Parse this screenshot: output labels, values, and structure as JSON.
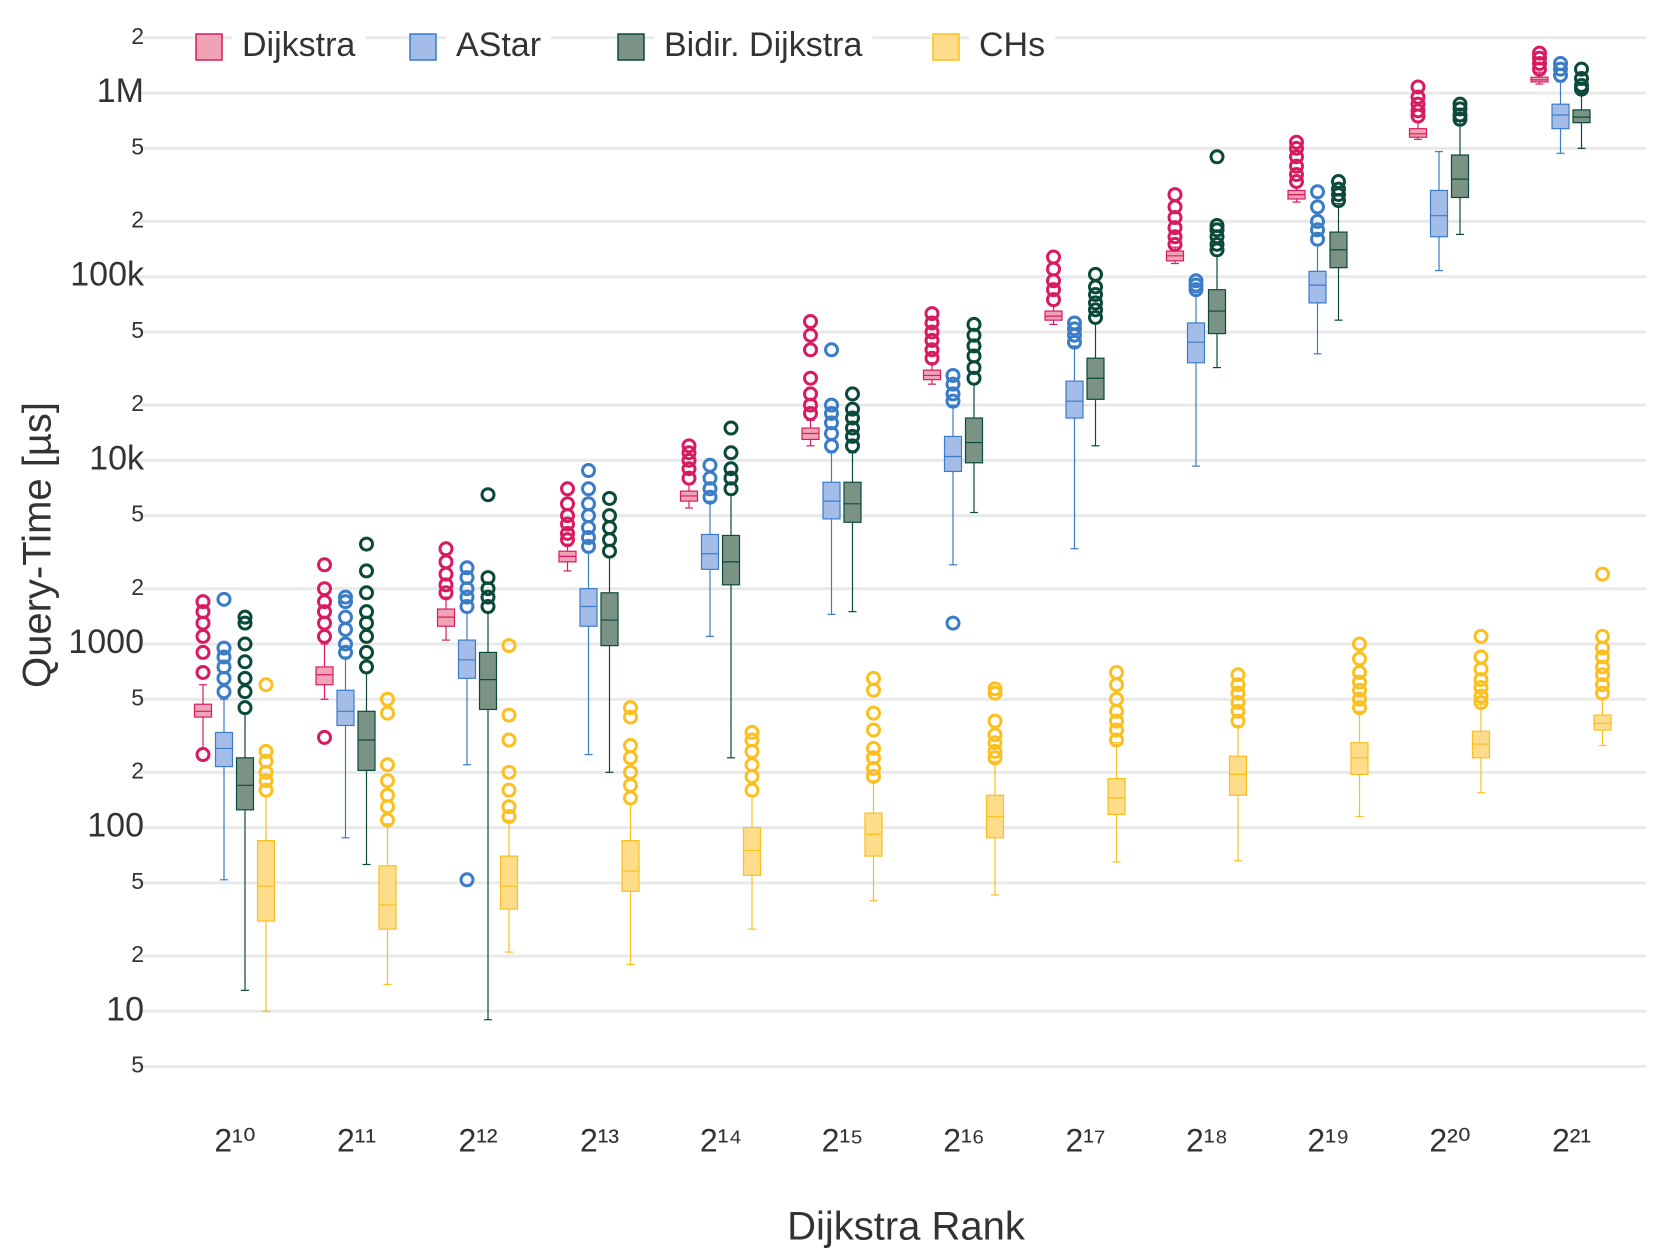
{
  "chart_data": {
    "type": "box",
    "y_label": "Query-Time [µs]",
    "x_label": "Dijkstra Rank",
    "categories": [
      "2¹⁰",
      "2¹¹",
      "2¹²",
      "2¹³",
      "2¹⁴",
      "2¹⁵",
      "2¹⁶",
      "2¹⁷",
      "2¹⁸",
      "2¹⁹",
      "2²⁰",
      "2²¹"
    ],
    "y_log": true,
    "grid": true,
    "legend": "top",
    "ylim": [
      3.5,
      2500000
    ],
    "yticks": [
      5,
      10,
      {
        "value": 20,
        "label": "2"
      },
      {
        "value": 50,
        "label": "5"
      },
      100,
      {
        "value": 200,
        "label": "2"
      },
      {
        "value": 500,
        "label": "5"
      },
      1000,
      {
        "value": 2000,
        "label": "2"
      },
      {
        "value": 5000,
        "label": "5"
      },
      {
        "value": 10000,
        "label": "10k"
      },
      {
        "value": 20000,
        "label": "2"
      },
      {
        "value": 50000,
        "label": "5"
      },
      {
        "value": 100000,
        "label": "100k"
      },
      {
        "value": 200000,
        "label": "2"
      },
      {
        "value": 500000,
        "label": "5"
      },
      {
        "value": 1000000,
        "label": "1M"
      },
      {
        "value": 2000000,
        "label": "2"
      }
    ],
    "series": [
      {
        "name": "Dijkstra",
        "color": "#d81b60",
        "box_color": "#f0a3b4",
        "whislo": [
          270,
          500,
          1050,
          2500,
          5500,
          12000,
          26000,
          55000,
          118000,
          255000,
          560000,
          1120000
        ],
        "q1": [
          400,
          600,
          1250,
          2800,
          6000,
          13000,
          27500,
          58000,
          122000,
          265000,
          575000,
          1150000
        ],
        "med": [
          430,
          680,
          1400,
          3000,
          6400,
          14000,
          29000,
          61000,
          130000,
          280000,
          600000,
          1180000
        ],
        "q3": [
          470,
          750,
          1550,
          3200,
          6800,
          15000,
          31000,
          65000,
          138000,
          295000,
          640000,
          1220000
        ],
        "whishi": [
          600,
          1000,
          1800,
          3500,
          7500,
          16500,
          34000,
          70000,
          145000,
          310000,
          700000,
          1300000
        ],
        "outliers": [
          [
            250,
            700,
            900,
            1100,
            1300,
            1500,
            1700
          ],
          [
            310,
            1100,
            1300,
            1500,
            1700,
            2000,
            2700
          ],
          [
            1900,
            2100,
            2400,
            2800,
            3300
          ],
          [
            3700,
            4000,
            4500,
            5000,
            5800,
            7000
          ],
          [
            8000,
            9000,
            10000,
            11000,
            12000
          ],
          [
            18000,
            20000,
            23000,
            28000,
            40000,
            48000,
            57000
          ],
          [
            36000,
            40000,
            45000,
            50000,
            56000,
            63000
          ],
          [
            75000,
            85000,
            95000,
            110000,
            128000
          ],
          [
            150000,
            165000,
            185000,
            210000,
            240000,
            280000
          ],
          [
            330000,
            360000,
            400000,
            450000,
            500000,
            540000
          ],
          [
            750000,
            800000,
            870000,
            950000,
            1080000
          ],
          [
            1350000,
            1450000,
            1550000,
            1650000
          ]
        ]
      },
      {
        "name": "AStar",
        "color": "#3a7cc8",
        "box_color": "#a4bde8",
        "whislo": [
          52,
          88,
          220,
          250,
          1100,
          1450,
          2700,
          3300,
          9300,
          38000,
          108000,
          470000
        ],
        "q1": [
          215,
          360,
          650,
          1250,
          2550,
          4800,
          8700,
          17000,
          34000,
          72000,
          165000,
          640000
        ],
        "med": [
          270,
          430,
          820,
          1600,
          3100,
          6000,
          10500,
          21000,
          44000,
          90000,
          215000,
          760000
        ],
        "q3": [
          330,
          560,
          1050,
          2000,
          3950,
          7600,
          13500,
          27000,
          56000,
          107000,
          295000,
          870000
        ],
        "whishi": [
          500,
          850,
          1500,
          3200,
          6000,
          11000,
          20000,
          42000,
          82000,
          150000,
          480000,
          1150000
        ],
        "outliers": [
          [
            550,
            650,
            750,
            850,
            950,
            1750
          ],
          [
            900,
            1000,
            1200,
            1400,
            1700,
            1800
          ],
          [
            52,
            1600,
            1800,
            2000,
            2300,
            2600
          ],
          [
            3400,
            3800,
            4300,
            5000,
            5800,
            7000,
            8800
          ],
          [
            6300,
            7000,
            8000,
            9400
          ],
          [
            12000,
            14000,
            16000,
            18000,
            20000,
            40000
          ],
          [
            1300,
            21000,
            23000,
            26000,
            29000
          ],
          [
            44000,
            48000,
            52000,
            56000
          ],
          [
            85000,
            90000,
            95000
          ],
          [
            160000,
            180000,
            200000,
            240000,
            290000
          ],
          [],
          [
            1250000,
            1350000,
            1450000
          ]
        ]
      },
      {
        "name": "Bidir. Dijkstra",
        "color": "#0b4a3a",
        "box_color": "#7a9384",
        "whislo": [
          13,
          63,
          9,
          200,
          240,
          1500,
          5200,
          12000,
          32000,
          58000,
          170000,
          500000
        ],
        "q1": [
          125,
          205,
          440,
          980,
          2100,
          4600,
          9700,
          21500,
          49000,
          112000,
          270000,
          690000
        ],
        "med": [
          170,
          300,
          640,
          1350,
          2800,
          5800,
          12500,
          28000,
          65000,
          140000,
          340000,
          740000
        ],
        "q3": [
          240,
          430,
          900,
          1900,
          3900,
          7600,
          17000,
          36000,
          85000,
          175000,
          460000,
          810000
        ],
        "whishi": [
          420,
          700,
          1500,
          3000,
          6500,
          11000,
          26000,
          56000,
          130000,
          250000,
          700000,
          1000000
        ],
        "outliers": [
          [
            450,
            550,
            650,
            800,
            1000,
            1300,
            1400
          ],
          [
            750,
            900,
            1100,
            1300,
            1500,
            1900,
            2500,
            3500
          ],
          [
            1600,
            1800,
            2000,
            2300,
            6500
          ],
          [
            3200,
            3700,
            4300,
            5000,
            6200
          ],
          [
            7000,
            8000,
            9000,
            11000,
            15000
          ],
          [
            12000,
            13500,
            15000,
            17000,
            19000,
            23000
          ],
          [
            28000,
            32000,
            37000,
            42000,
            48000,
            55000
          ],
          [
            60000,
            66000,
            72000,
            80000,
            88000,
            103000
          ],
          [
            140000,
            150000,
            165000,
            180000,
            190000,
            450000
          ],
          [
            260000,
            280000,
            300000,
            330000
          ],
          [
            720000,
            760000,
            820000,
            870000
          ],
          [
            1050000,
            1100000,
            1200000,
            1350000
          ]
        ]
      },
      {
        "name": "CHs",
        "color": "#fbbf1f",
        "box_color": "#fddc8a",
        "whislo": [
          10,
          14,
          21,
          18,
          28,
          40,
          43,
          65,
          66,
          115,
          155,
          280
        ],
        "q1": [
          31,
          28,
          36,
          45,
          55,
          70,
          88,
          118,
          150,
          195,
          240,
          340
        ],
        "med": [
          48,
          38,
          48,
          58,
          75,
          92,
          115,
          145,
          195,
          240,
          285,
          370
        ],
        "q3": [
          85,
          62,
          70,
          85,
          100,
          120,
          150,
          185,
          245,
          290,
          335,
          410
        ],
        "whishi": [
          150,
          105,
          110,
          135,
          150,
          180,
          230,
          290,
          360,
          430,
          470,
          510
        ],
        "outliers": [
          [
            160,
            180,
            200,
            230,
            260,
            600
          ],
          [
            110,
            130,
            150,
            180,
            220,
            420,
            500
          ],
          [
            115,
            130,
            160,
            200,
            300,
            410,
            980
          ],
          [
            145,
            170,
            200,
            240,
            280,
            400,
            450
          ],
          [
            160,
            190,
            220,
            260,
            300,
            330
          ],
          [
            190,
            210,
            240,
            270,
            340,
            420,
            560,
            650
          ],
          [
            240,
            260,
            290,
            320,
            380,
            540,
            570
          ],
          [
            300,
            340,
            380,
            430,
            500,
            600,
            700
          ],
          [
            380,
            430,
            480,
            540,
            600,
            680
          ],
          [
            450,
            500,
            560,
            620,
            700,
            830,
            1000
          ],
          [
            480,
            520,
            580,
            640,
            730,
            850,
            1100
          ],
          [
            540,
            600,
            680,
            750,
            850,
            950,
            1100,
            2400
          ]
        ]
      }
    ]
  }
}
